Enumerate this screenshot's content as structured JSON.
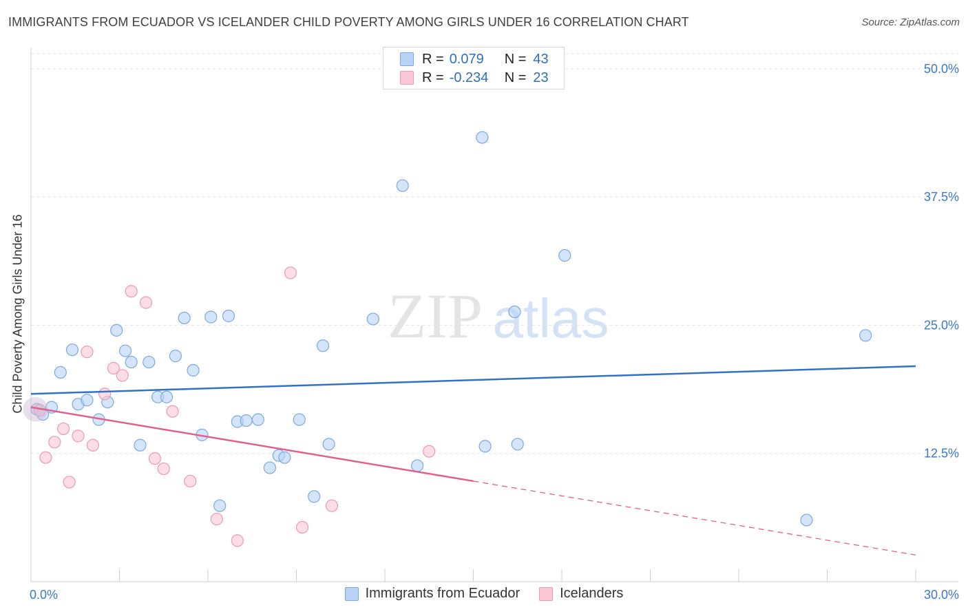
{
  "title": "IMMIGRANTS FROM ECUADOR VS ICELANDER CHILD POVERTY AMONG GIRLS UNDER 16 CORRELATION CHART",
  "source": "Source: ZipAtlas.com",
  "watermark": {
    "zip": "ZIP",
    "atlas": "atlas"
  },
  "legend": {
    "r_label": "R =",
    "n_label": "N =",
    "rows": [
      {
        "r": "0.079",
        "n": "43",
        "fill": "#b8d3f5",
        "stroke": "#7aa8e0"
      },
      {
        "r": "-0.234",
        "n": "23",
        "fill": "#fbc6d6",
        "stroke": "#e99ab4"
      }
    ]
  },
  "chart_data": {
    "type": "scatter",
    "title": "IMMIGRANTS FROM ECUADOR VS ICELANDER CHILD POVERTY AMONG GIRLS UNDER 16 CORRELATION CHART",
    "xlabel": "",
    "ylabel": "Child Poverty Among Girls Under 16",
    "xlim": [
      0,
      30
    ],
    "ylim": [
      0,
      52
    ],
    "x_tick_labels": [
      {
        "value": 0,
        "label": "0.0%"
      },
      {
        "value": 30,
        "label": "30.0%"
      }
    ],
    "y_tick_labels": [
      {
        "value": 12.5,
        "label": "12.5%"
      },
      {
        "value": 25,
        "label": "25.0%"
      },
      {
        "value": 37.5,
        "label": "37.5%"
      },
      {
        "value": 50,
        "label": "50.0%"
      }
    ],
    "grid": true,
    "legend_position": "top-center",
    "series": [
      {
        "name": "Immigrants from Ecuador",
        "color": "#7aa8e0",
        "fill": "#b8d3f5",
        "line_color": "#2f72c8",
        "trend": {
          "x0": 0,
          "y0": 18.3,
          "x1": 30,
          "y1": 21.0,
          "dashed_from": null
        },
        "points": [
          [
            0.2,
            16.8
          ],
          [
            0.4,
            16.3
          ],
          [
            0.7,
            17.0
          ],
          [
            1.0,
            20.4
          ],
          [
            1.4,
            22.6
          ],
          [
            1.6,
            17.3
          ],
          [
            1.9,
            17.7
          ],
          [
            2.3,
            15.8
          ],
          [
            2.6,
            17.5
          ],
          [
            2.9,
            24.5
          ],
          [
            3.2,
            22.5
          ],
          [
            3.4,
            21.4
          ],
          [
            3.7,
            13.3
          ],
          [
            4.0,
            21.4
          ],
          [
            4.3,
            18.0
          ],
          [
            4.6,
            18.0
          ],
          [
            4.9,
            22.0
          ],
          [
            5.2,
            25.7
          ],
          [
            5.5,
            20.6
          ],
          [
            5.8,
            14.3
          ],
          [
            6.1,
            25.8
          ],
          [
            6.4,
            7.4
          ],
          [
            6.7,
            25.9
          ],
          [
            7.0,
            15.6
          ],
          [
            7.3,
            15.7
          ],
          [
            7.7,
            15.8
          ],
          [
            8.1,
            11.1
          ],
          [
            8.4,
            12.3
          ],
          [
            8.6,
            12.1
          ],
          [
            9.1,
            15.8
          ],
          [
            9.6,
            8.3
          ],
          [
            9.9,
            23.0
          ],
          [
            10.1,
            13.4
          ],
          [
            11.6,
            25.6
          ],
          [
            12.6,
            38.6
          ],
          [
            13.1,
            11.3
          ],
          [
            15.3,
            43.3
          ],
          [
            15.4,
            13.2
          ],
          [
            16.4,
            26.3
          ],
          [
            16.5,
            13.4
          ],
          [
            18.1,
            31.8
          ],
          [
            26.3,
            6.0
          ],
          [
            28.3,
            24.0
          ]
        ]
      },
      {
        "name": "Icelanders",
        "color": "#e99ab4",
        "fill": "#fbc6d6",
        "line_color": "#e05f8e",
        "trend": {
          "x0": 0,
          "y0": 17.0,
          "x1": 30,
          "y1": 2.6,
          "dashed_from": 15.0
        },
        "points": [
          [
            0.3,
            16.7
          ],
          [
            0.5,
            12.1
          ],
          [
            0.8,
            13.6
          ],
          [
            1.1,
            14.9
          ],
          [
            1.3,
            9.7
          ],
          [
            1.6,
            14.2
          ],
          [
            1.9,
            22.4
          ],
          [
            2.1,
            13.3
          ],
          [
            2.5,
            18.3
          ],
          [
            2.8,
            20.8
          ],
          [
            3.1,
            20.1
          ],
          [
            3.4,
            28.3
          ],
          [
            3.9,
            27.2
          ],
          [
            4.2,
            12.0
          ],
          [
            4.5,
            11.0
          ],
          [
            4.8,
            16.6
          ],
          [
            5.4,
            9.8
          ],
          [
            6.3,
            6.1
          ],
          [
            7.0,
            4.0
          ],
          [
            8.8,
            30.1
          ],
          [
            9.2,
            5.3
          ],
          [
            10.2,
            7.4
          ],
          [
            13.5,
            12.7
          ]
        ]
      }
    ]
  },
  "bottom_legend": [
    {
      "label": "Immigrants from Ecuador",
      "fill": "#b8d3f5",
      "stroke": "#7aa8e0"
    },
    {
      "label": "Icelanders",
      "fill": "#fbc6d6",
      "stroke": "#e99ab4"
    }
  ]
}
